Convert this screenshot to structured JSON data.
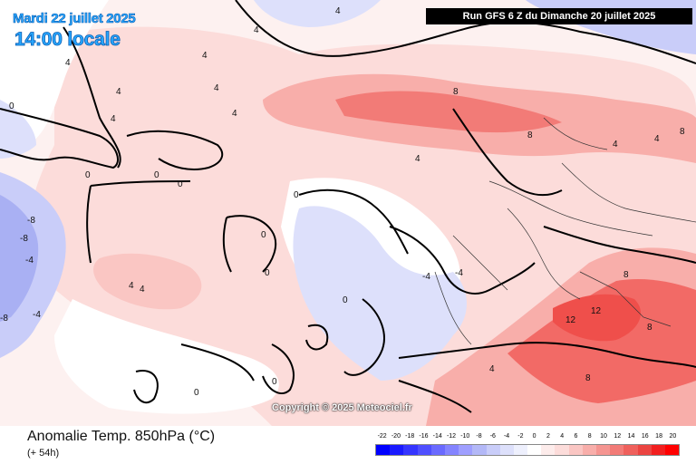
{
  "header": {
    "date_label": "Mardi 22 juillet 2025",
    "time_label": "14:00 locale",
    "run_label": "Run GFS 6 Z du Dimanche 20 juillet 2025"
  },
  "map": {
    "copyright": "Copyright © 2025 Meteociel.fr",
    "contour_labels": [
      {
        "text": "4"
      },
      {
        "text": "4"
      },
      {
        "text": "4"
      },
      {
        "text": "4"
      },
      {
        "text": "4"
      },
      {
        "text": "4"
      },
      {
        "text": "4"
      },
      {
        "text": "4"
      },
      {
        "text": "4"
      },
      {
        "text": "0"
      },
      {
        "text": "0"
      },
      {
        "text": "0"
      },
      {
        "text": "0"
      },
      {
        "text": "0"
      },
      {
        "text": "0"
      },
      {
        "text": "0"
      },
      {
        "text": "0"
      },
      {
        "text": "0"
      },
      {
        "text": "0"
      },
      {
        "text": "8"
      },
      {
        "text": "8"
      },
      {
        "text": "8"
      },
      {
        "text": "8"
      },
      {
        "text": "8"
      },
      {
        "text": "8"
      },
      {
        "text": "12"
      },
      {
        "text": "12"
      },
      {
        "text": "-4"
      },
      {
        "text": "-4"
      },
      {
        "text": "-4"
      },
      {
        "text": "-4"
      },
      {
        "text": "-8"
      },
      {
        "text": "-8"
      },
      {
        "text": "-8"
      },
      {
        "text": "4"
      },
      {
        "text": "4"
      },
      {
        "text": "4"
      },
      {
        "text": "4"
      },
      {
        "text": "4"
      }
    ]
  },
  "footer": {
    "title": "Anomalie Temp. 850hPa (°C)",
    "lead_time": "(+ 54h)"
  },
  "colors": {
    "warm_light": "#fde2e0",
    "warm_mid": "#f9aaa6",
    "warm_strong": "#f26a66",
    "cool_light": "#dfe1fb",
    "cool_mid": "#b7bdf5",
    "coast": "#000000",
    "date_text": "#29a9ff"
  },
  "legend": {
    "labels": [
      "-22",
      "-20",
      "-18",
      "-16",
      "-14",
      "-12",
      "-10",
      "-8",
      "-6",
      "-4",
      "-2",
      "0",
      "2",
      "4",
      "6",
      "8",
      "10",
      "12",
      "14",
      "16",
      "18",
      "20"
    ],
    "colors": [
      "#0000ff",
      "#1a1aff",
      "#3535ff",
      "#4f4fff",
      "#6a6aff",
      "#8484ff",
      "#9f9fff",
      "#b3b8f7",
      "#c9cdf9",
      "#dde0fb",
      "#eef0fd",
      "#ffffff",
      "#fdeceb",
      "#fcdcda",
      "#fac6c3",
      "#f8aeaa",
      "#f59591",
      "#f27b77",
      "#ef605c",
      "#eb4441",
      "#f21f1f",
      "#ff0000"
    ]
  }
}
